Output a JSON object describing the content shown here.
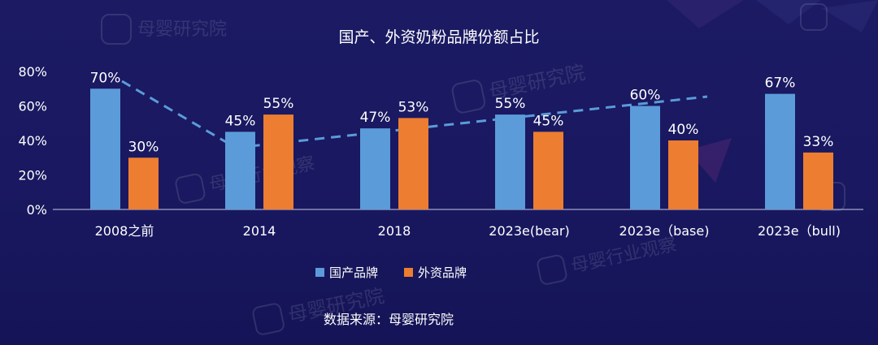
{
  "chart_data": {
    "type": "bar",
    "title": "国产、外资奶粉品牌份额占比",
    "categories": [
      "2008之前",
      "2014",
      "2018",
      "2023e(bear)",
      "2023e（base)",
      "2023e（bull)"
    ],
    "series": [
      {
        "name": "国产品牌",
        "values": [
          70,
          45,
          47,
          55,
          60,
          67
        ],
        "labels": [
          "70%",
          "45%",
          "47%",
          "55%",
          "60%",
          "67%"
        ],
        "color": "#5b9bd9"
      },
      {
        "name": "外资品牌",
        "values": [
          30,
          55,
          53,
          45,
          40,
          33
        ],
        "labels": [
          "30%",
          "55%",
          "53%",
          "45%",
          "40%",
          "33%"
        ],
        "color": "#ed7d31"
      }
    ],
    "yticks": [
      0,
      20,
      40,
      60,
      80
    ],
    "ytick_labels": [
      "0%",
      "20%",
      "40%",
      "60%",
      "80%"
    ],
    "ylim": [
      0,
      80
    ],
    "trend_line": {
      "style": "dashed",
      "color": "#5b9bd9"
    },
    "legend_position": "bottom",
    "source": "数据来源：母婴研究院"
  },
  "watermark": {
    "text": "母婴研究院",
    "text2": "母婴行业观察"
  }
}
